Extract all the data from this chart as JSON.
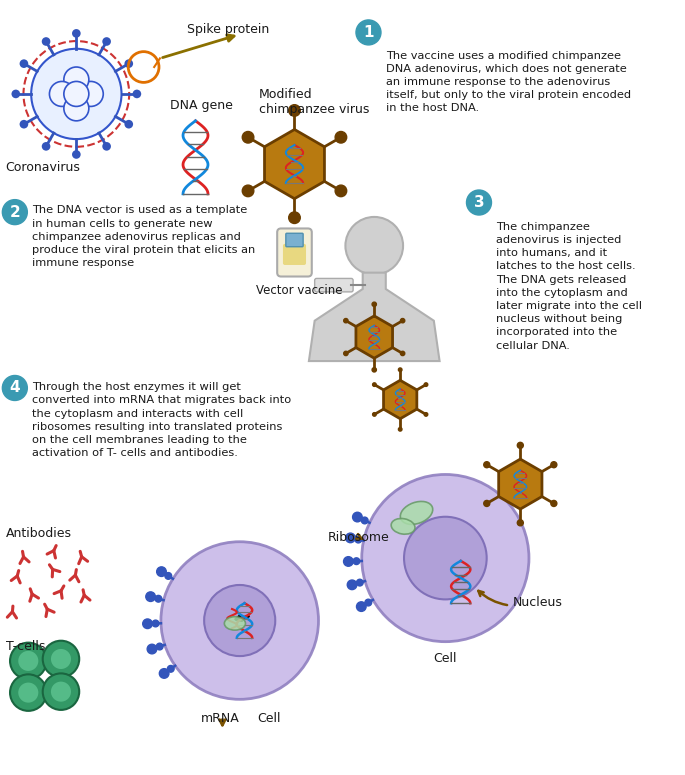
{
  "bg_color": "#ffffff",
  "teal_color": "#3a9ab2",
  "brown_color": "#6B3E00",
  "golden_color": "#b87a10",
  "dark_golden": "#7a5200",
  "text_color": "#1a1a1a",
  "blue_spike": "#3355bb",
  "cell_fill": "#c8b8e8",
  "cell_edge": "#9080c0",
  "nucleus_fill": "#b0a0d8",
  "nucleus_edge": "#8070b8",
  "step1_text": "The vaccine uses a modified chimpanzee\nDNA adenovirus, which does not generate\nan immune response to the adenovirus\nitself, but only to the viral protein encoded\nin the host DNA.",
  "step2_text": "The DNA vector is used as a template\nin human cells to generate new\nchimpanzee adenovirus replicas and\nproduce the viral protein that elicits an\nimmune response",
  "step3_text": "The chimpanzee\nadenovirus is injected\ninto humans, and it\nlatches to the host cells.\nThe DNA gets released\ninto the cytoplasm and\nlater migrate into the cell\nnucleus without being\nincorporated into the\ncellular DNA.",
  "step4_text": "Through the host enzymes it will get\nconverted into mRNA that migrates back into\nthe cytoplasm and interacts with cell\nribosomes resulting into translated proteins\non the cell membranes leading to the\nactivation of T- cells and antibodies.",
  "label_coronavirus": "Coronavirus",
  "label_spike": "Spike protein",
  "label_dna": "DNA gene",
  "label_modified": "Modified\nchimpanzee virus",
  "label_vaccine": "Vector vaccine",
  "label_ribosome": "Ribosome",
  "label_nucleus": "Nucleus",
  "label_cell1": "Cell",
  "label_cell2": "Cell",
  "label_mrna": "mRNA",
  "label_antibodies": "Antibodies",
  "label_tcells": "T-cells"
}
